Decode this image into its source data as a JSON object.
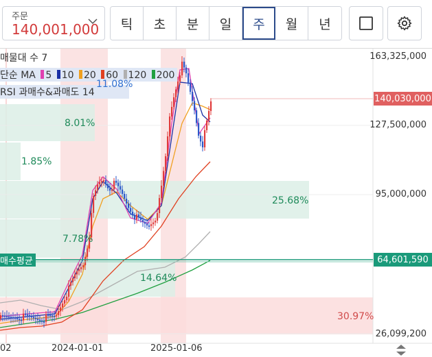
{
  "order": {
    "label": "주문",
    "value": "140,001,000"
  },
  "periods": [
    "틱",
    "초",
    "분",
    "일",
    "주",
    "월",
    "년"
  ],
  "active_period": "주",
  "legend": {
    "volume_profile": "매물대 수 7",
    "ma_prefix": "단순 MA",
    "ma_items": [
      {
        "label": "5",
        "color": "#e040b0"
      },
      {
        "label": "10",
        "color": "#1a2fa6"
      },
      {
        "label": "20",
        "color": "#f0a020"
      },
      {
        "label": "60",
        "color": "#e04020"
      },
      {
        "label": "120",
        "color": "#b0b0b0"
      },
      {
        "label": "200",
        "color": "#20a040"
      }
    ],
    "rsi": "RSI 과매수&과매도 14"
  },
  "price_axis": [
    "163,325,000",
    "127,500,000",
    "95,000,000",
    "26,099,200"
  ],
  "current_price_tag": {
    "value": "140,030,000",
    "color": "#e06060"
  },
  "avg_price_tag": {
    "value": "64,601,590",
    "color": "#1a9a7a"
  },
  "avg_price_label": "매수평균",
  "profile_pcts": [
    {
      "value": "11.08%",
      "color": "#2f6fd0"
    },
    {
      "value": "8.01%",
      "color": "#1f8a5a"
    },
    {
      "value": "1.85%",
      "color": "#1f8a5a"
    },
    {
      "value": "25.68%",
      "color": "#1f8a5a"
    },
    {
      "value": "7.78%",
      "color": "#1f8a5a"
    },
    {
      "value": "14.64%",
      "color": "#1f8a5a"
    },
    {
      "value": "30.97%",
      "color": "#d04a4a"
    }
  ],
  "dates": [
    "02",
    "2024-01-01",
    "2025-01-06"
  ]
}
